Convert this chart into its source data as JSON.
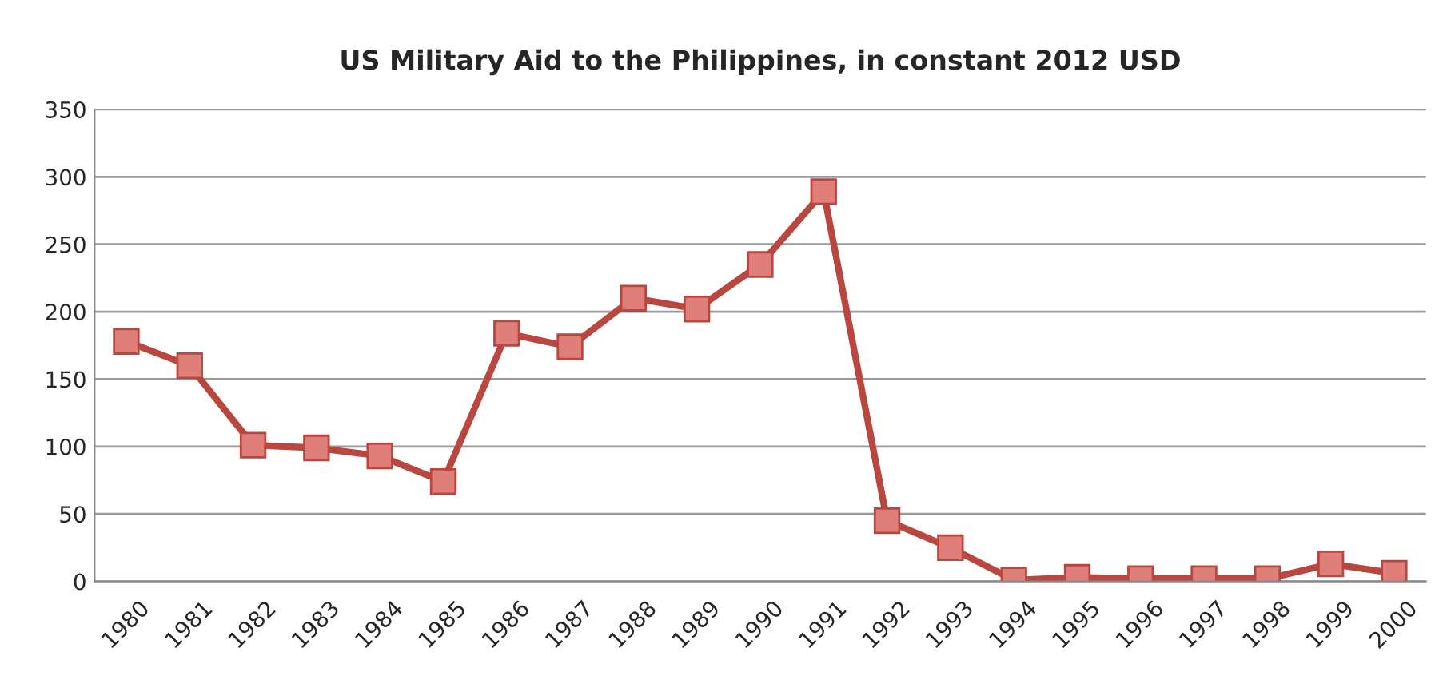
{
  "chart_data": {
    "type": "line",
    "title": "US Military Aid to the Philippines, in constant 2012 USD",
    "categories": [
      "1980",
      "1981",
      "1982",
      "1983",
      "1984",
      "1985",
      "1986",
      "1987",
      "1988",
      "1989",
      "1990",
      "1991",
      "1992",
      "1993",
      "1994",
      "1995",
      "1996",
      "1997",
      "1998",
      "1999",
      "2000"
    ],
    "series": [
      {
        "color": "#b9473f",
        "values": [
          178,
          160,
          101,
          99,
          93,
          74,
          184,
          174,
          210,
          202,
          235,
          289,
          45,
          25,
          1,
          3,
          2,
          2,
          2,
          13,
          6
        ]
      }
    ],
    "ylim": [
      0,
      350
    ],
    "yticks": [
      0,
      50,
      100,
      150,
      200,
      250,
      300,
      350
    ],
    "grid": "y",
    "marker": "square",
    "line_style": "solid"
  }
}
